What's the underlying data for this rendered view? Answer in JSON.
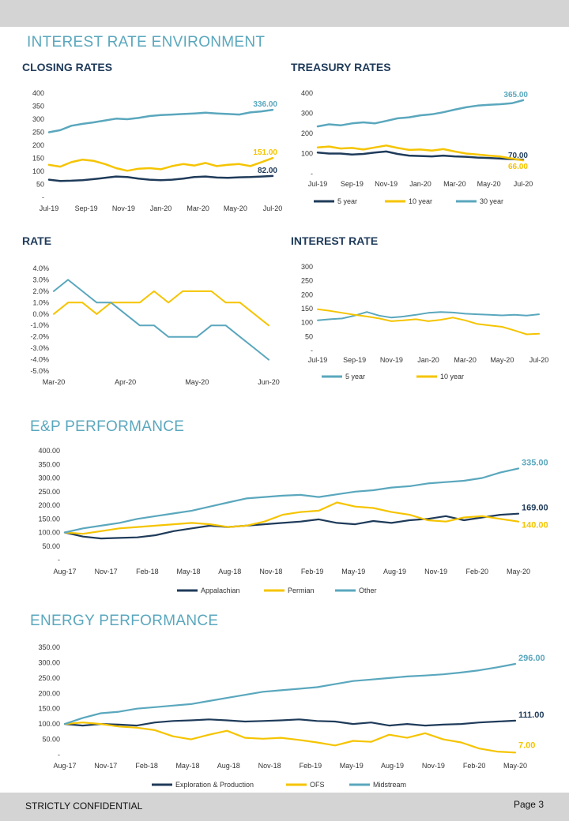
{
  "page": {
    "footer_left": "STRICTLY CONFIDENTIAL",
    "footer_right": "Page 3",
    "section_1_title": "INTEREST RATE ENVIRONMENT",
    "section_2_title": "E&P PERFORMANCE",
    "section_3_title": "ENERGY PERFORMANCE"
  },
  "colors": {
    "navy": "#1f3b5a",
    "gold": "#f5c400",
    "teal": "#5aa7bd"
  },
  "chart_data": [
    {
      "id": "closing_rates",
      "type": "line",
      "title": "CLOSING RATES",
      "ylim": [
        0,
        400
      ],
      "yticks": [
        "-",
        "50",
        "100",
        "150",
        "200",
        "250",
        "300",
        "350",
        "400"
      ],
      "xticks": [
        "Jul-19",
        "Sep-19",
        "Nov-19",
        "Jan-20",
        "Mar-20",
        "May-20",
        "Jul-20"
      ],
      "legend": "none",
      "series": [
        {
          "color": "navy",
          "end_label": "82.00",
          "values": [
            68,
            63,
            64,
            66,
            70,
            75,
            80,
            78,
            72,
            68,
            66,
            68,
            72,
            78,
            80,
            76,
            75,
            77,
            78,
            80,
            82
          ]
        },
        {
          "color": "gold",
          "end_label": "151.00",
          "values": [
            125,
            118,
            135,
            145,
            140,
            128,
            112,
            102,
            110,
            112,
            108,
            120,
            128,
            122,
            132,
            120,
            125,
            128,
            120,
            135,
            151
          ]
        },
        {
          "color": "teal",
          "end_label": "336.00",
          "values": [
            250,
            258,
            275,
            282,
            288,
            295,
            302,
            300,
            305,
            312,
            316,
            318,
            320,
            322,
            325,
            322,
            320,
            318,
            326,
            330,
            336
          ]
        }
      ]
    },
    {
      "id": "treasury_rates",
      "type": "line",
      "title": "TREASURY RATES",
      "ylim": [
        0,
        400
      ],
      "yticks": [
        "-",
        "100",
        "200",
        "300",
        "400"
      ],
      "xticks": [
        "Jul-19",
        "Sep-19",
        "Nov-19",
        "Jan-20",
        "Mar-20",
        "May-20",
        "Jul-20"
      ],
      "legend": "bottom",
      "series": [
        {
          "name": "5 year",
          "color": "navy",
          "end_label": "70.00",
          "values": [
            105,
            100,
            100,
            95,
            98,
            105,
            110,
            98,
            90,
            88,
            86,
            90,
            86,
            84,
            80,
            78,
            75,
            72,
            70
          ]
        },
        {
          "name": "10 year",
          "color": "gold",
          "end_label": "66.00",
          "values": [
            130,
            135,
            125,
            128,
            120,
            130,
            140,
            128,
            118,
            120,
            115,
            122,
            110,
            100,
            95,
            90,
            85,
            75,
            66
          ]
        },
        {
          "name": "30 year",
          "color": "teal",
          "end_label": "365.00",
          "values": [
            235,
            245,
            240,
            250,
            255,
            250,
            262,
            275,
            280,
            290,
            295,
            305,
            318,
            330,
            338,
            342,
            345,
            350,
            365
          ]
        }
      ]
    },
    {
      "id": "rate",
      "type": "line",
      "title": "RATE",
      "ylim": [
        -5,
        4
      ],
      "yticks": [
        "-5.0%",
        "-4.0%",
        "-3.0%",
        "-2.0%",
        "-1.0%",
        "0.0%",
        "1.0%",
        "2.0%",
        "3.0%",
        "4.0%"
      ],
      "xticks": [
        "Mar-20",
        "Apr-20",
        "May-20",
        "Jun-20"
      ],
      "legend": "none",
      "series": [
        {
          "color": "gold",
          "values": [
            0,
            1,
            1,
            0,
            1,
            1,
            1,
            2,
            1,
            2,
            2,
            2,
            1,
            1,
            0,
            -1
          ]
        },
        {
          "color": "teal",
          "values": [
            2,
            3,
            2,
            1,
            1,
            0,
            -1,
            -1,
            -2,
            -2,
            -2,
            -1,
            -1,
            -2,
            -3,
            -4
          ]
        }
      ]
    },
    {
      "id": "interest_rate",
      "type": "line",
      "title": "INTEREST RATE",
      "ylim": [
        0,
        300
      ],
      "yticks": [
        "-",
        "50",
        "100",
        "150",
        "200",
        "250",
        "300"
      ],
      "xticks": [
        "Jul-19",
        "Sep-19",
        "Nov-19",
        "Jan-20",
        "Mar-20",
        "May-20",
        "Jul-20"
      ],
      "legend": "bottom",
      "series": [
        {
          "name": "5 year",
          "color": "teal",
          "values": [
            108,
            112,
            115,
            125,
            138,
            125,
            118,
            122,
            128,
            135,
            138,
            136,
            132,
            130,
            128,
            126,
            128,
            125,
            130
          ]
        },
        {
          "name": "10 year",
          "color": "gold",
          "values": [
            148,
            142,
            135,
            128,
            122,
            115,
            105,
            108,
            112,
            105,
            110,
            118,
            108,
            95,
            90,
            85,
            72,
            58,
            60
          ]
        }
      ]
    },
    {
      "id": "ep_performance",
      "type": "line",
      "title": "",
      "ylim": [
        0,
        400
      ],
      "yticks": [
        "-",
        "50.00",
        "100.00",
        "150.00",
        "200.00",
        "250.00",
        "300.00",
        "350.00",
        "400.00"
      ],
      "xticks": [
        "Aug-17",
        "Nov-17",
        "Feb-18",
        "May-18",
        "Aug-18",
        "Nov-18",
        "Feb-19",
        "May-19",
        "Aug-19",
        "Nov-19",
        "Feb-20",
        "May-20"
      ],
      "legend": "bottom",
      "series": [
        {
          "name": "Appalachian",
          "color": "navy",
          "end_label": "169.00",
          "values": [
            100,
            85,
            78,
            80,
            82,
            90,
            105,
            115,
            125,
            120,
            125,
            130,
            135,
            140,
            148,
            135,
            130,
            142,
            135,
            145,
            150,
            160,
            145,
            155,
            165,
            169
          ]
        },
        {
          "name": "Permian",
          "color": "gold",
          "end_label": "140.00",
          "values": [
            100,
            95,
            105,
            115,
            120,
            125,
            130,
            135,
            130,
            120,
            125,
            140,
            165,
            175,
            180,
            210,
            195,
            190,
            175,
            165,
            145,
            140,
            155,
            160,
            150,
            140
          ]
        },
        {
          "name": "Other",
          "color": "teal",
          "end_label": "335.00",
          "values": [
            100,
            115,
            125,
            135,
            150,
            160,
            170,
            180,
            195,
            210,
            225,
            230,
            235,
            238,
            230,
            240,
            250,
            255,
            265,
            270,
            280,
            285,
            290,
            300,
            320,
            335
          ]
        }
      ]
    },
    {
      "id": "energy_performance",
      "type": "line",
      "title": "",
      "ylim": [
        0,
        350
      ],
      "yticks": [
        "-",
        "50.00",
        "100.00",
        "150.00",
        "200.00",
        "250.00",
        "300.00",
        "350.00"
      ],
      "xticks": [
        "Aug-17",
        "Nov-17",
        "Feb-18",
        "May-18",
        "Aug-18",
        "Nov-18",
        "Feb-19",
        "May-19",
        "Aug-19",
        "Nov-19",
        "Feb-20",
        "May-20"
      ],
      "legend": "bottom",
      "series": [
        {
          "name": "Exploration & Production",
          "color": "navy",
          "end_label": "111.00",
          "values": [
            100,
            95,
            100,
            98,
            95,
            105,
            110,
            112,
            115,
            112,
            108,
            110,
            112,
            115,
            110,
            108,
            100,
            105,
            95,
            100,
            95,
            98,
            100,
            105,
            108,
            111
          ]
        },
        {
          "name": "OFS",
          "color": "gold",
          "end_label": "7.00",
          "values": [
            100,
            105,
            100,
            92,
            88,
            80,
            60,
            50,
            65,
            78,
            55,
            52,
            55,
            48,
            40,
            30,
            45,
            42,
            65,
            55,
            70,
            50,
            40,
            20,
            10,
            7
          ]
        },
        {
          "name": "Midstream",
          "color": "teal",
          "end_label": "296.00",
          "values": [
            100,
            120,
            135,
            140,
            150,
            155,
            160,
            165,
            175,
            185,
            195,
            205,
            210,
            215,
            220,
            230,
            240,
            245,
            250,
            255,
            258,
            262,
            268,
            275,
            285,
            296
          ]
        }
      ]
    }
  ]
}
